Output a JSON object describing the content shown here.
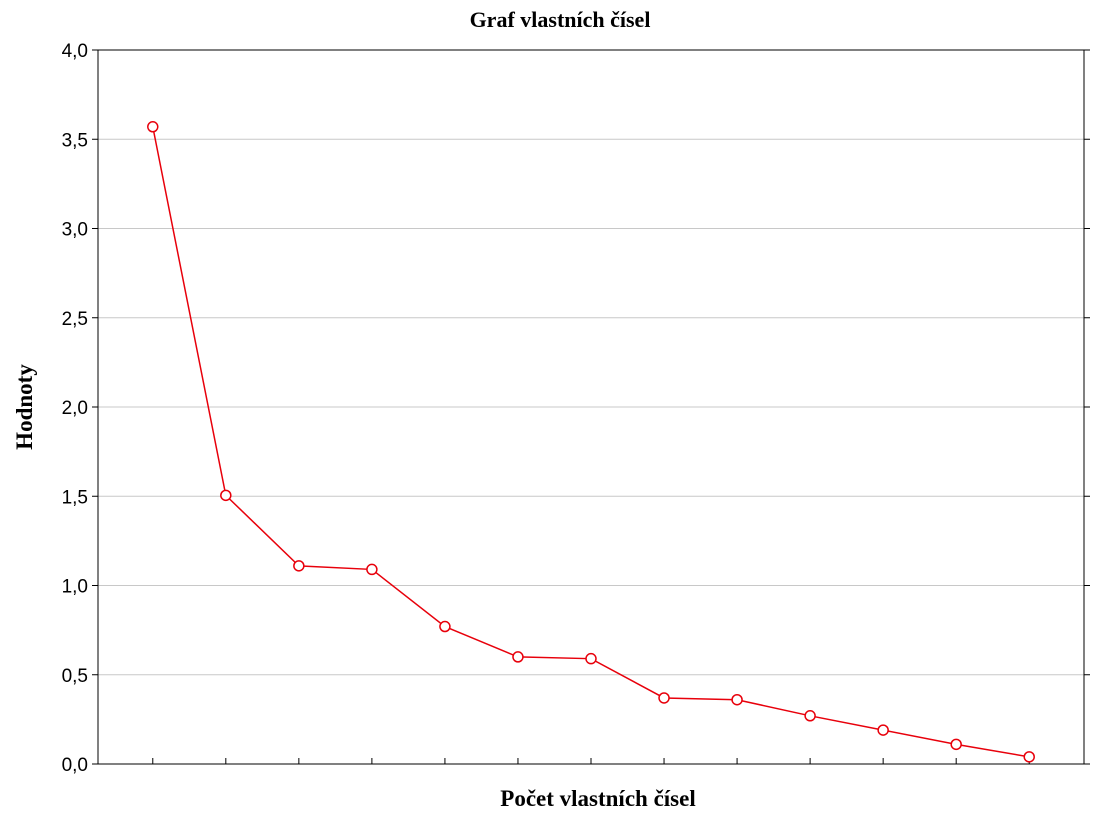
{
  "chart_data": {
    "type": "line",
    "title": "Graf vlastních čísel",
    "xlabel": "Počet vlastních čísel",
    "ylabel": "Hodnoty",
    "ylim": [
      0,
      4
    ],
    "yticks": [
      0,
      0.5,
      1,
      1.5,
      2,
      2.5,
      3,
      3.5,
      4
    ],
    "ytick_labels": [
      "0,0",
      "0,5",
      "1,0",
      "1,5",
      "2,0",
      "2,5",
      "3,0",
      "3,5",
      "4,0"
    ],
    "x": [
      1,
      2,
      3,
      4,
      5,
      6,
      7,
      8,
      9,
      10,
      11,
      12,
      13
    ],
    "xlim": [
      0.25,
      13.75
    ],
    "grid": "horizontal",
    "series": [
      {
        "color": "#e8000b",
        "marker": "open-circle",
        "values": [
          3.57,
          1.505,
          1.11,
          1.09,
          0.77,
          0.6,
          0.59,
          0.37,
          0.36,
          0.27,
          0.19,
          0.11,
          0.04
        ]
      }
    ]
  }
}
